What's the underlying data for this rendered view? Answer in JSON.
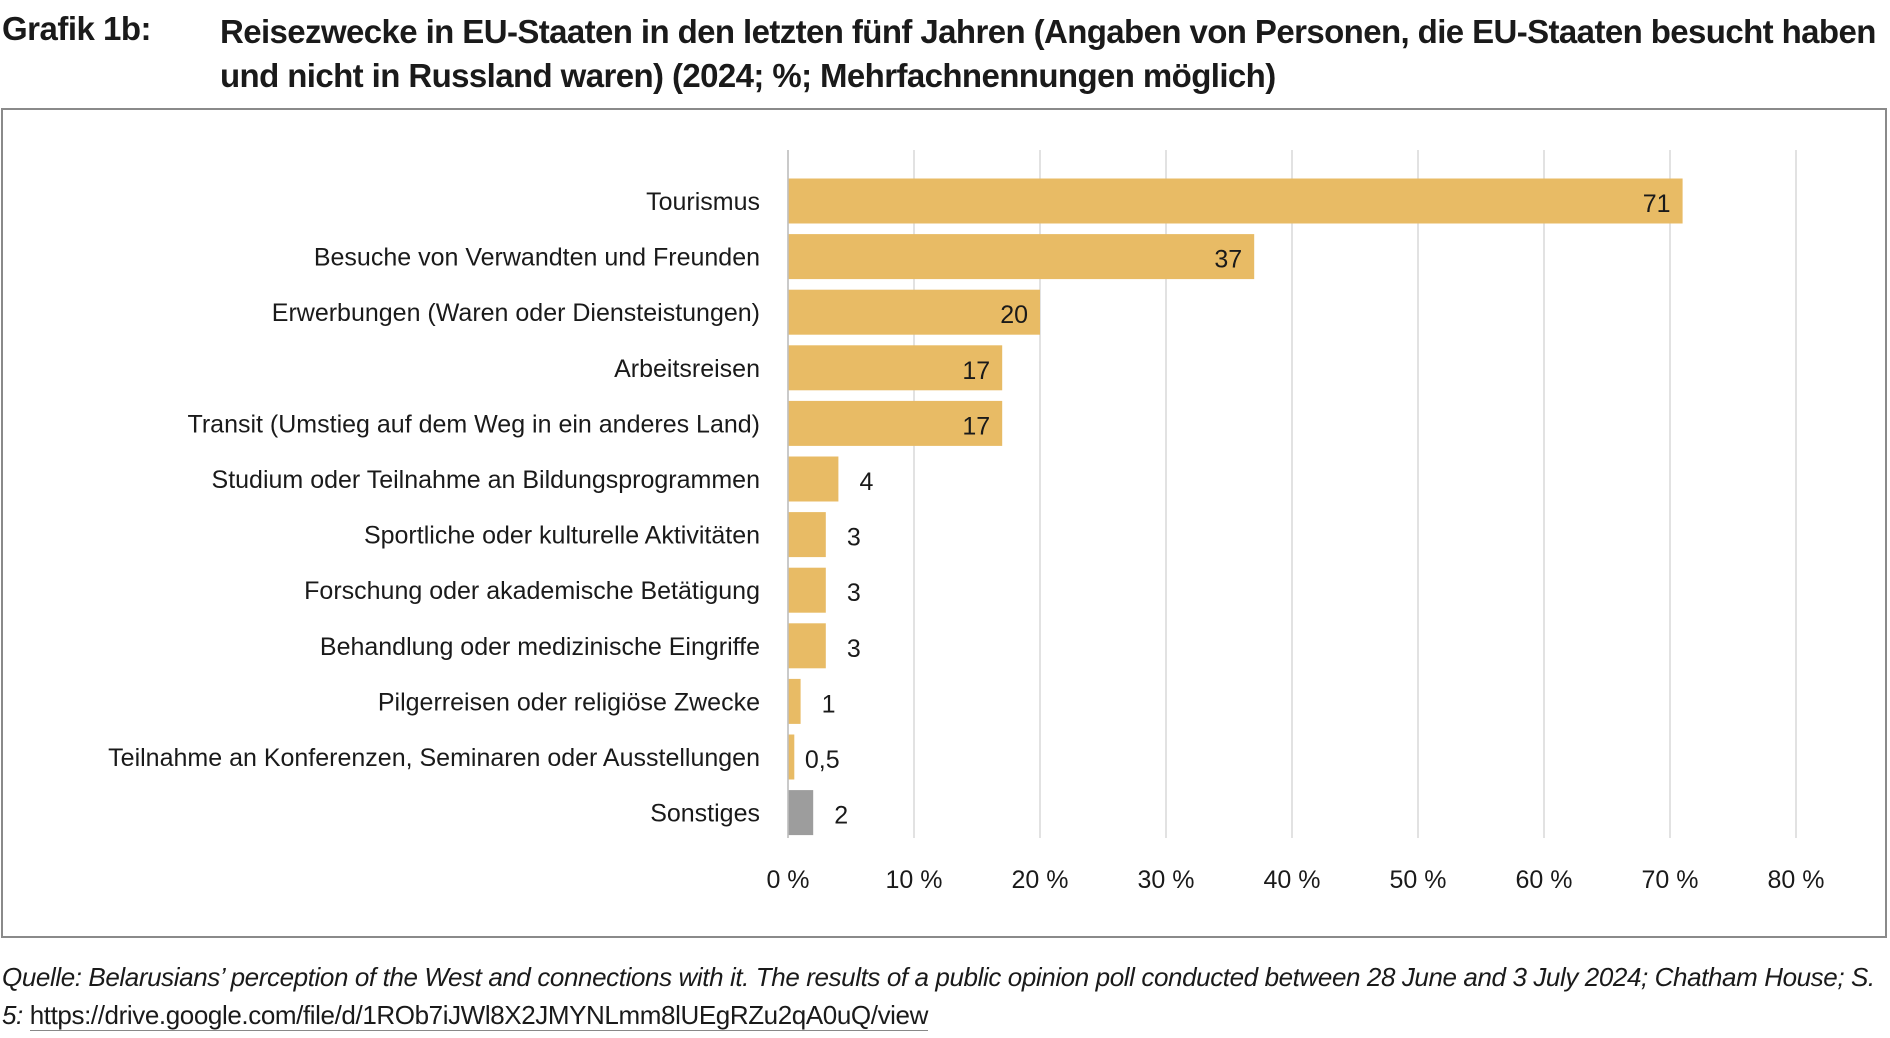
{
  "header": {
    "label": "Grafik 1b:",
    "title": "Reisezwecke in EU-Staaten in den letzten fünf Jahren (Angaben von Personen, die EU-Staaten besucht haben und nicht in Russland waren) (2024; %; Mehrfachnennungen möglich)"
  },
  "chart_data": {
    "type": "bar",
    "orientation": "horizontal",
    "title": "Reisezwecke in EU-Staaten in den letzten fünf Jahren (Angaben von Personen, die EU-Staaten besucht haben und nicht in Russland waren) (2024; %; Mehrfachnennungen möglich)",
    "categories": [
      "Tourismus",
      "Besuche von Verwandten und Freunden",
      "Erwerbungen (Waren oder Diensteistungen)",
      "Arbeitsreisen",
      "Transit (Umstieg auf dem Weg in ein anderes Land)",
      "Studium oder Teilnahme an Bildungsprogrammen",
      "Sportliche oder kulturelle Aktivitäten",
      "Forschung oder akademische Betätigung",
      "Behandlung oder medizinische Eingriffe",
      "Pilgerreisen oder religiöse Zwecke",
      "Teilnahme an Konferenzen, Seminaren oder Ausstellungen",
      "Sonstiges"
    ],
    "values": [
      71,
      37,
      20,
      17,
      17,
      4,
      3,
      3,
      3,
      1,
      0.5,
      2
    ],
    "value_labels": [
      "71",
      "37",
      "20",
      "17",
      "17",
      "4",
      "3",
      "3",
      "3",
      "1",
      "0,5",
      "2"
    ],
    "bar_colors": [
      "#e8bb65",
      "#e8bb65",
      "#e8bb65",
      "#e8bb65",
      "#e8bb65",
      "#e8bb65",
      "#e8bb65",
      "#e8bb65",
      "#e8bb65",
      "#e8bb65",
      "#e8bb65",
      "#9d9d9d"
    ],
    "x_ticks": [
      0,
      10,
      20,
      30,
      40,
      50,
      60,
      70,
      80
    ],
    "x_tick_labels": [
      "0 %",
      "10 %",
      "20 %",
      "30 %",
      "40 %",
      "50 %",
      "60 %",
      "70 %",
      "80 %"
    ],
    "xlim": [
      0,
      80
    ],
    "xlabel": "",
    "ylabel": "",
    "grid": true,
    "gridline_color": "#d9d9d9"
  },
  "source": {
    "text": "Quelle: Belarusians’ perception of the West and connections with it. The results of a public opinion poll conducted between 28 June and 3 July 2024; Chatham House; S. 5:",
    "link": "https://drive.google.com/file/d/1ROb7iJWl8X2JMYNLmm8lUEgRZu2qA0uQ/view"
  }
}
